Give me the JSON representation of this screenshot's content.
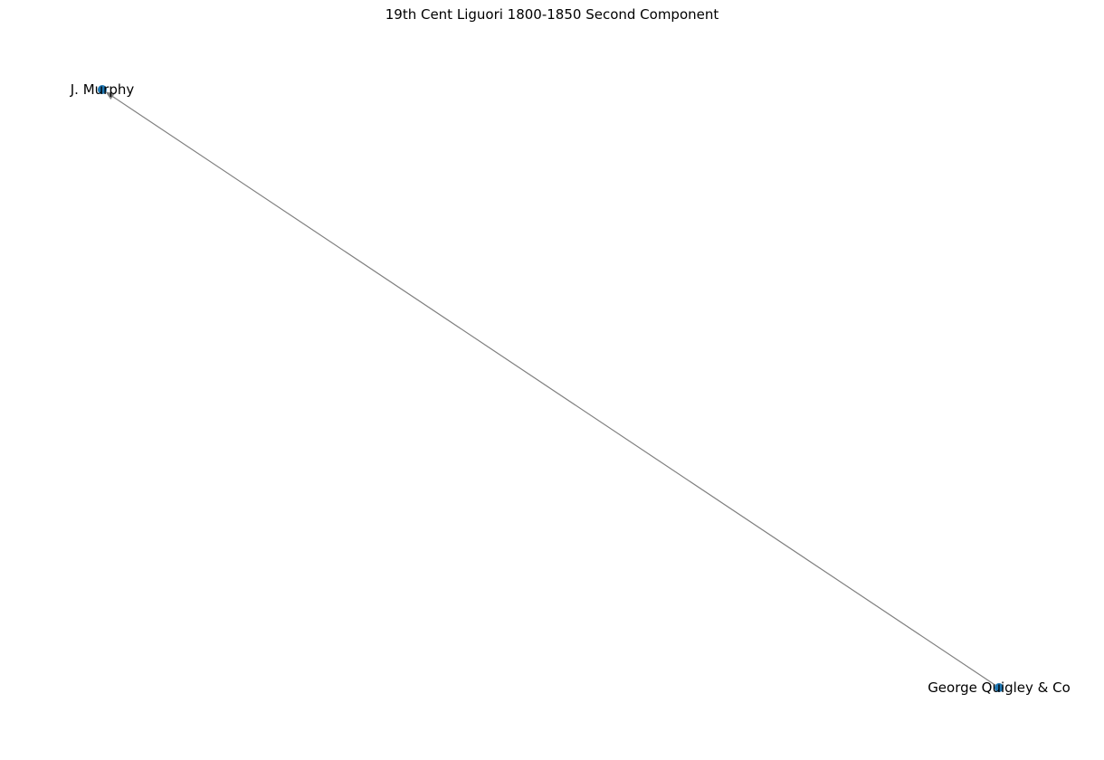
{
  "title": "19th Cent Liguori 1800-1850 Second Component",
  "graph": {
    "directed": true,
    "nodes": [
      {
        "id": "george-quigley",
        "label": "George Quigley & Co"
      },
      {
        "id": "j-murphy",
        "label": "J. Murphy"
      }
    ],
    "edges": [
      {
        "source": "george-quigley",
        "target": "j-murphy"
      }
    ]
  },
  "colors": {
    "node": "#1f78b4",
    "edge": "#808080",
    "label": "#000000"
  }
}
